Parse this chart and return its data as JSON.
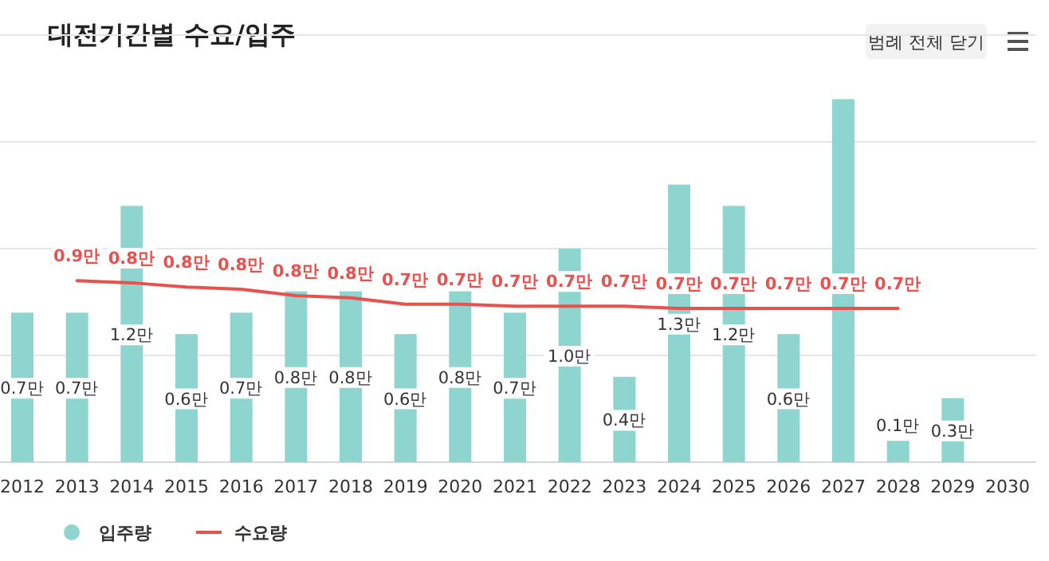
{
  "chart_data": {
    "type": "bar",
    "title": "대전기간별 수요/입주",
    "categories": [
      "2012",
      "2013",
      "2014",
      "2015",
      "2016",
      "2017",
      "2018",
      "2019",
      "2020",
      "2021",
      "2022",
      "2023",
      "2024",
      "2025",
      "2026",
      "2027",
      "2028",
      "2029",
      "2030"
    ],
    "ylim": [
      0,
      2
    ],
    "yticks": [
      {
        "value": 0,
        "label": null
      },
      {
        "value": 0.5,
        "label": null
      },
      {
        "value": 1,
        "label": null
      },
      {
        "value": 1.5,
        "label": null
      },
      {
        "value": 2,
        "label": null
      }
    ],
    "grid": "y",
    "legend": "bottom left",
    "tick_labels": "x",
    "series": [
      {
        "name": "입주량",
        "color": "#8fd5cf",
        "values": [
          0.7,
          0.7,
          1.2,
          0.6,
          0.7,
          0.8,
          0.8,
          0.6,
          0.8,
          0.7,
          1.0,
          0.4,
          1.3,
          1.2,
          0.6,
          1.7,
          0.1,
          0.3,
          null
        ],
        "value_labels": [
          "0.7만",
          "0.7만",
          "1.2만",
          "0.6만",
          "0.7만",
          "0.8만",
          "0.8만",
          "0.6만",
          "0.8만",
          "0.7만",
          "1.0만",
          "0.4만",
          "1.3만",
          "1.2만",
          "0.6만",
          null,
          "0.1만",
          "0.3만",
          null
        ]
      },
      {
        "name": "수요량",
        "type": "line",
        "color": "#e9514e",
        "values": [
          null,
          0.85,
          0.84,
          0.82,
          0.81,
          0.78,
          0.77,
          0.74,
          0.74,
          0.73,
          0.73,
          0.73,
          0.72,
          0.72,
          0.72,
          0.72,
          0.72,
          null,
          null
        ],
        "value_labels": [
          null,
          "0.9만",
          "0.8만",
          "0.8만",
          "0.8만",
          "0.8만",
          "0.8만",
          "0.7만",
          "0.7만",
          "0.7만",
          "0.7만",
          "0.7만",
          "0.7만",
          "0.7만",
          "0.7만",
          "0.7만",
          "0.7만",
          null,
          null
        ]
      }
    ],
    "annotations": [
      "범례 전체 닫기"
    ]
  }
}
